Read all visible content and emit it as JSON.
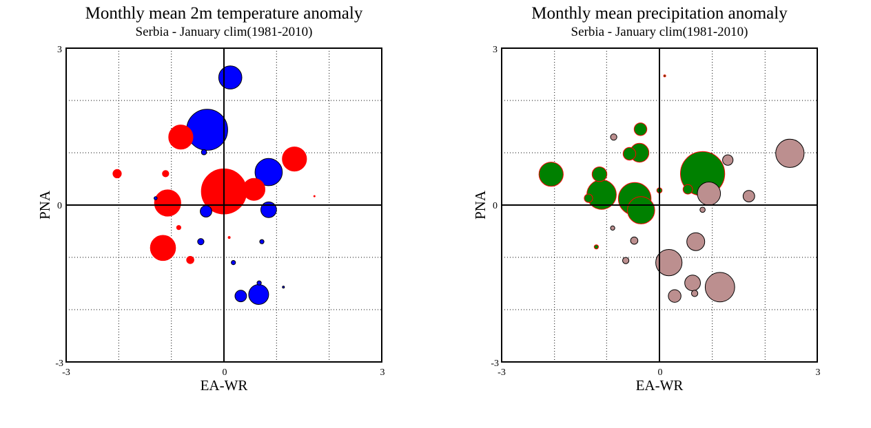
{
  "chart_data": [
    {
      "type": "scatter",
      "title": "Monthly mean 2m temperature anomaly",
      "subtitle": "Serbia - January  clim(1981-2010)",
      "xlabel": "EA-WR",
      "ylabel": "PNA",
      "xlim": [
        -3,
        3
      ],
      "ylim": [
        -3,
        3
      ],
      "ticks": {
        "xmin": "-3",
        "xzero": "0",
        "xmax": "3",
        "ymin": "-3",
        "yzero": "0",
        "ymax": "3"
      },
      "grid": true,
      "encoding": "bubble size = anomaly magnitude; red = positive, blue = negative",
      "colors": {
        "positive": "#ff0000",
        "negative": "#0000ff",
        "outline": "#000000"
      },
      "points": [
        {
          "x": 0.12,
          "y": 2.44,
          "s": 0.22,
          "sign": "neg"
        },
        {
          "x": -0.32,
          "y": 1.44,
          "s": 0.39,
          "sign": "neg"
        },
        {
          "x": -0.82,
          "y": 1.3,
          "s": 0.23,
          "sign": "pos"
        },
        {
          "x": -0.38,
          "y": 1.01,
          "s": 0.05,
          "sign": "neg"
        },
        {
          "x": 1.34,
          "y": 0.88,
          "s": 0.23,
          "sign": "pos"
        },
        {
          "x": 0.85,
          "y": 0.63,
          "s": 0.26,
          "sign": "neg"
        },
        {
          "x": -2.03,
          "y": 0.6,
          "s": 0.08,
          "sign": "pos"
        },
        {
          "x": -1.11,
          "y": 0.6,
          "s": 0.06,
          "sign": "pos"
        },
        {
          "x": 0.0,
          "y": 0.26,
          "s": 0.43,
          "sign": "pos"
        },
        {
          "x": 0.57,
          "y": 0.3,
          "s": 0.21,
          "sign": "pos"
        },
        {
          "x": -1.07,
          "y": 0.04,
          "s": 0.25,
          "sign": "pos"
        },
        {
          "x": -1.3,
          "y": 0.13,
          "s": 0.03,
          "sign": "neg"
        },
        {
          "x": -0.34,
          "y": -0.12,
          "s": 0.11,
          "sign": "neg"
        },
        {
          "x": 0.85,
          "y": -0.09,
          "s": 0.15,
          "sign": "neg"
        },
        {
          "x": -0.86,
          "y": -0.43,
          "s": 0.04,
          "sign": "pos"
        },
        {
          "x": 0.1,
          "y": -0.62,
          "s": 0.02,
          "sign": "pos"
        },
        {
          "x": -0.44,
          "y": -0.7,
          "s": 0.06,
          "sign": "neg"
        },
        {
          "x": 0.72,
          "y": -0.7,
          "s": 0.04,
          "sign": "neg"
        },
        {
          "x": -1.16,
          "y": -0.82,
          "s": 0.24,
          "sign": "pos"
        },
        {
          "x": -0.64,
          "y": -1.05,
          "s": 0.07,
          "sign": "pos"
        },
        {
          "x": 0.18,
          "y": -1.1,
          "s": 0.04,
          "sign": "neg"
        },
        {
          "x": 0.67,
          "y": -1.49,
          "s": 0.04,
          "sign": "neg"
        },
        {
          "x": 1.13,
          "y": -1.57,
          "s": 0.02,
          "sign": "neg"
        },
        {
          "x": 0.32,
          "y": -1.74,
          "s": 0.11,
          "sign": "neg"
        },
        {
          "x": 0.66,
          "y": -1.71,
          "s": 0.19,
          "sign": "neg"
        },
        {
          "x": 1.72,
          "y": 0.17,
          "s": 0.01,
          "sign": "pos"
        }
      ]
    },
    {
      "type": "scatter",
      "title": "Monthly mean precipitation anomaly",
      "subtitle": "Serbia - January  clim(1981-2010)",
      "xlabel": "EA-WR",
      "ylabel": "PNA",
      "xlim": [
        -3,
        3
      ],
      "ylim": [
        -3,
        3
      ],
      "ticks": {
        "xmin": "-3",
        "xzero": "0",
        "xmax": "3",
        "ymin": "-3",
        "yzero": "0",
        "ymax": "3"
      },
      "grid": true,
      "encoding": "bubble size = anomaly magnitude; green = wet, brown = dry",
      "colors": {
        "wet": "#008000",
        "wet_outline": "#ff0000",
        "dry": "#bc8f8f",
        "dry_outline": "#000000"
      },
      "points": [
        {
          "x": 0.1,
          "y": 2.47,
          "s": 0.02,
          "sign": "wet"
        },
        {
          "x": -0.36,
          "y": 1.45,
          "s": 0.12,
          "sign": "wet"
        },
        {
          "x": -0.87,
          "y": 1.3,
          "s": 0.06,
          "sign": "dry"
        },
        {
          "x": -0.38,
          "y": 1.0,
          "s": 0.18,
          "sign": "wet"
        },
        {
          "x": -0.57,
          "y": 0.98,
          "s": 0.12,
          "sign": "wet"
        },
        {
          "x": 2.48,
          "y": 0.99,
          "s": 0.27,
          "sign": "dry"
        },
        {
          "x": 1.3,
          "y": 0.86,
          "s": 0.1,
          "sign": "dry"
        },
        {
          "x": -2.06,
          "y": 0.59,
          "s": 0.23,
          "sign": "wet"
        },
        {
          "x": -1.14,
          "y": 0.59,
          "s": 0.14,
          "sign": "wet"
        },
        {
          "x": 0.82,
          "y": 0.6,
          "s": 0.42,
          "sign": "wet"
        },
        {
          "x": 0.54,
          "y": 0.3,
          "s": 0.09,
          "sign": "wet"
        },
        {
          "x": 0.0,
          "y": 0.28,
          "s": 0.05,
          "sign": "wet"
        },
        {
          "x": -1.1,
          "y": 0.2,
          "s": 0.28,
          "sign": "wet"
        },
        {
          "x": -1.35,
          "y": 0.13,
          "s": 0.08,
          "sign": "wet"
        },
        {
          "x": 0.94,
          "y": 0.22,
          "s": 0.22,
          "sign": "dry"
        },
        {
          "x": 1.7,
          "y": 0.17,
          "s": 0.11,
          "sign": "dry"
        },
        {
          "x": -0.47,
          "y": 0.12,
          "s": 0.31,
          "sign": "wet"
        },
        {
          "x": -0.35,
          "y": -0.1,
          "s": 0.26,
          "sign": "wet"
        },
        {
          "x": 0.82,
          "y": -0.09,
          "s": 0.05,
          "sign": "dry"
        },
        {
          "x": -0.89,
          "y": -0.44,
          "s": 0.04,
          "sign": "dry"
        },
        {
          "x": -0.48,
          "y": -0.68,
          "s": 0.07,
          "sign": "dry"
        },
        {
          "x": 0.69,
          "y": -0.7,
          "s": 0.17,
          "sign": "dry"
        },
        {
          "x": -1.2,
          "y": -0.8,
          "s": 0.04,
          "sign": "wet"
        },
        {
          "x": -0.64,
          "y": -1.06,
          "s": 0.06,
          "sign": "dry"
        },
        {
          "x": 0.18,
          "y": -1.1,
          "s": 0.25,
          "sign": "dry"
        },
        {
          "x": 0.63,
          "y": -1.49,
          "s": 0.15,
          "sign": "dry"
        },
        {
          "x": 1.15,
          "y": -1.57,
          "s": 0.28,
          "sign": "dry"
        },
        {
          "x": 0.29,
          "y": -1.74,
          "s": 0.12,
          "sign": "dry"
        },
        {
          "x": 0.67,
          "y": -1.69,
          "s": 0.06,
          "sign": "dry"
        }
      ]
    }
  ]
}
